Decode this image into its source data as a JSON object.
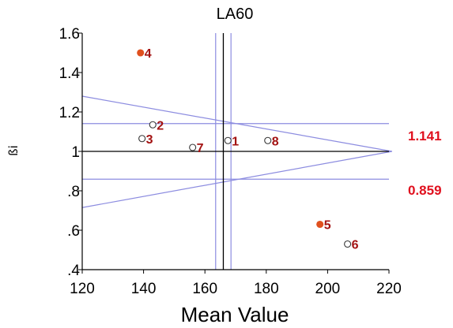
{
  "chart_data": {
    "type": "scatter",
    "title": "LA60",
    "xlabel": "Mean Value",
    "ylabel": "ßi",
    "xlim": [
      120,
      220
    ],
    "ylim": [
      0.4,
      1.6
    ],
    "x_ticks": [
      {
        "value": 120,
        "label": "120"
      },
      {
        "value": 140,
        "label": "140"
      },
      {
        "value": 160,
        "label": "160"
      },
      {
        "value": 180,
        "label": "180"
      },
      {
        "value": 200,
        "label": "200"
      },
      {
        "value": 220,
        "label": "220"
      }
    ],
    "y_ticks": [
      {
        "value": 0.4,
        "label": ".4"
      },
      {
        "value": 0.6,
        "label": ".6"
      },
      {
        "value": 0.8,
        "label": ".8"
      },
      {
        "value": 1.0,
        "label": "1"
      },
      {
        "value": 1.2,
        "label": "1.2"
      },
      {
        "value": 1.4,
        "label": "1.4"
      },
      {
        "value": 1.6,
        "label": "1.6"
      }
    ],
    "points": [
      {
        "label": "1",
        "x": 167.5,
        "y": 1.055,
        "filled": false
      },
      {
        "label": "2",
        "x": 143.0,
        "y": 1.135,
        "filled": false
      },
      {
        "label": "3",
        "x": 139.5,
        "y": 1.065,
        "filled": false
      },
      {
        "label": "4",
        "x": 139.0,
        "y": 1.5,
        "filled": true
      },
      {
        "label": "5",
        "x": 197.5,
        "y": 0.63,
        "filled": true
      },
      {
        "label": "6",
        "x": 206.5,
        "y": 0.53,
        "filled": false
      },
      {
        "label": "7",
        "x": 156.0,
        "y": 1.02,
        "filled": false
      },
      {
        "label": "8",
        "x": 180.5,
        "y": 1.055,
        "filled": false
      }
    ],
    "reference_lines": {
      "horizontal_mean": 1.0,
      "horizontal_upper": 1.141,
      "horizontal_lower": 0.859,
      "upper_label": "1.141",
      "lower_label": "0.859",
      "vertical_mean": 166.0,
      "vertical_left": 163.5,
      "vertical_right": 168.5,
      "funnel_apex": [
        221.0,
        1.0
      ],
      "funnel_left_upper": 1.28,
      "funnel_left_lower": 0.715
    },
    "colors": {
      "filled_point": "#e0501e",
      "point_label": "#a31212",
      "ref_label": "#e0101e",
      "ref_line": "#8c8ce0",
      "axis": "#000000"
    }
  }
}
